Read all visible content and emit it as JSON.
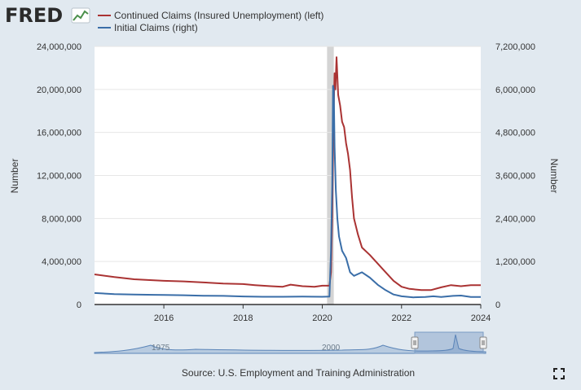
{
  "brand": {
    "logo_text": "FRED"
  },
  "legend": [
    {
      "label": "Continued Claims (Insured Unemployment) (left)",
      "color": "#aa3333"
    },
    {
      "label": "Initial Claims (right)",
      "color": "#3a6ea8"
    }
  ],
  "source_text": "Source: U.S. Employment and Training Administration",
  "navigator": {
    "labels": [
      "1975",
      "2000"
    ]
  },
  "icons": {
    "fullscreen": "fullscreen-icon",
    "logo_graph": "chart-line-icon"
  },
  "chart_data": {
    "type": "line",
    "title": "",
    "x_range": [
      2014.25,
      2024.0
    ],
    "x_ticks": [
      {
        "value": 2016,
        "label": "2016"
      },
      {
        "value": 2018,
        "label": "2018"
      },
      {
        "value": 2020,
        "label": "2020"
      },
      {
        "value": 2022,
        "label": "2022"
      },
      {
        "value": 2024,
        "label": "2024"
      }
    ],
    "y_left": {
      "label": "Number",
      "range": [
        0,
        24000000
      ],
      "ticks": [
        "0",
        "4,000,000",
        "8,000,000",
        "12,000,000",
        "16,000,000",
        "20,000,000",
        "24,000,000"
      ],
      "tick_values": [
        0,
        4000000,
        8000000,
        12000000,
        16000000,
        20000000,
        24000000
      ]
    },
    "y_right": {
      "label": "Number",
      "range": [
        0,
        7200000
      ],
      "ticks": [
        "0",
        "1,200,000",
        "2,400,000",
        "3,600,000",
        "4,800,000",
        "6,000,000",
        "7,200,000"
      ],
      "tick_values": [
        0,
        1200000,
        2400000,
        3600000,
        4800000,
        6000000,
        7200000
      ]
    },
    "recession_band": [
      2020.12,
      2020.29
    ],
    "grid": true,
    "series": [
      {
        "name": "Continued Claims (Insured Unemployment) (left)",
        "axis": "left",
        "color": "#aa3333",
        "points": [
          [
            2014.25,
            2800000
          ],
          [
            2014.75,
            2550000
          ],
          [
            2015.25,
            2350000
          ],
          [
            2015.75,
            2250000
          ],
          [
            2016.0,
            2200000
          ],
          [
            2016.5,
            2150000
          ],
          [
            2017.0,
            2050000
          ],
          [
            2017.5,
            1950000
          ],
          [
            2018.0,
            1900000
          ],
          [
            2018.3,
            1800000
          ],
          [
            2018.7,
            1700000
          ],
          [
            2019.0,
            1650000
          ],
          [
            2019.2,
            1850000
          ],
          [
            2019.5,
            1700000
          ],
          [
            2019.8,
            1650000
          ],
          [
            2020.0,
            1750000
          ],
          [
            2020.18,
            1750000
          ],
          [
            2020.22,
            3000000
          ],
          [
            2020.25,
            8000000
          ],
          [
            2020.28,
            17000000
          ],
          [
            2020.31,
            21500000
          ],
          [
            2020.33,
            20000000
          ],
          [
            2020.36,
            23000000
          ],
          [
            2020.4,
            19500000
          ],
          [
            2020.45,
            18500000
          ],
          [
            2020.5,
            17000000
          ],
          [
            2020.55,
            16500000
          ],
          [
            2020.6,
            15000000
          ],
          [
            2020.65,
            14000000
          ],
          [
            2020.7,
            12500000
          ],
          [
            2020.75,
            10000000
          ],
          [
            2020.8,
            8000000
          ],
          [
            2020.9,
            6500000
          ],
          [
            2021.0,
            5300000
          ],
          [
            2021.2,
            4600000
          ],
          [
            2021.4,
            3800000
          ],
          [
            2021.6,
            3000000
          ],
          [
            2021.8,
            2200000
          ],
          [
            2022.0,
            1650000
          ],
          [
            2022.2,
            1450000
          ],
          [
            2022.5,
            1350000
          ],
          [
            2022.75,
            1350000
          ],
          [
            2023.0,
            1600000
          ],
          [
            2023.25,
            1800000
          ],
          [
            2023.5,
            1700000
          ],
          [
            2023.75,
            1800000
          ],
          [
            2024.0,
            1800000
          ]
        ]
      },
      {
        "name": "Initial Claims (right)",
        "axis": "right",
        "color": "#3a6ea8",
        "points": [
          [
            2014.25,
            320000
          ],
          [
            2014.75,
            290000
          ],
          [
            2015.25,
            280000
          ],
          [
            2015.75,
            270000
          ],
          [
            2016.0,
            265000
          ],
          [
            2016.5,
            260000
          ],
          [
            2017.0,
            245000
          ],
          [
            2017.5,
            240000
          ],
          [
            2018.0,
            225000
          ],
          [
            2018.5,
            215000
          ],
          [
            2019.0,
            215000
          ],
          [
            2019.5,
            220000
          ],
          [
            2020.0,
            215000
          ],
          [
            2020.18,
            220000
          ],
          [
            2020.22,
            1500000
          ],
          [
            2020.25,
            3300000
          ],
          [
            2020.27,
            6100000
          ],
          [
            2020.29,
            6000000
          ],
          [
            2020.31,
            4400000
          ],
          [
            2020.34,
            3200000
          ],
          [
            2020.38,
            2400000
          ],
          [
            2020.42,
            1900000
          ],
          [
            2020.5,
            1500000
          ],
          [
            2020.6,
            1300000
          ],
          [
            2020.7,
            900000
          ],
          [
            2020.8,
            800000
          ],
          [
            2021.0,
            900000
          ],
          [
            2021.2,
            750000
          ],
          [
            2021.4,
            550000
          ],
          [
            2021.6,
            400000
          ],
          [
            2021.8,
            280000
          ],
          [
            2022.0,
            230000
          ],
          [
            2022.3,
            200000
          ],
          [
            2022.6,
            210000
          ],
          [
            2022.8,
            230000
          ],
          [
            2023.0,
            210000
          ],
          [
            2023.3,
            240000
          ],
          [
            2023.5,
            250000
          ],
          [
            2023.75,
            210000
          ],
          [
            2024.0,
            210000
          ]
        ]
      }
    ]
  }
}
